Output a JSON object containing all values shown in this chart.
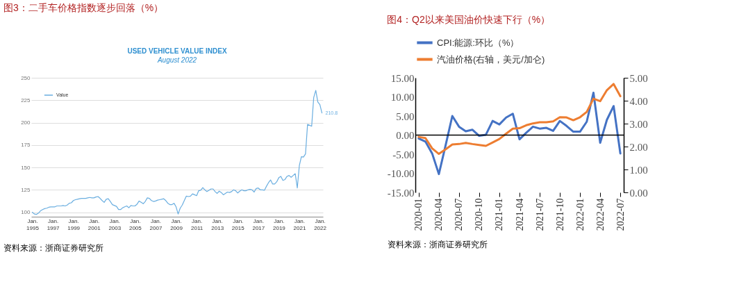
{
  "chart_data": [
    {
      "type": "line",
      "title": "图3：二手车价格指数逐步回落（%）",
      "subtitle": "USED VEHICLE VALUE INDEX",
      "annotations": [
        "August 2022",
        "资料来源：浙商证券研究所"
      ],
      "categories": [
        "Jan. 1995",
        null,
        null,
        null,
        null,
        null,
        null,
        null,
        null,
        null,
        "Jan. 1997",
        null,
        null,
        null,
        null,
        null,
        null,
        null,
        null,
        null,
        "Jan. 1999",
        null,
        null,
        null,
        null,
        null,
        null,
        null,
        null,
        null,
        "Jan. 2001",
        null,
        null,
        null,
        null,
        null,
        null,
        null,
        null,
        null,
        "Jan. 2003",
        null,
        null,
        null,
        null,
        null,
        null,
        null,
        null,
        null,
        "Jan. 2005",
        null,
        null,
        null,
        null,
        null,
        null,
        null,
        null,
        null,
        "Jan. 2007",
        null,
        null,
        null,
        null,
        null,
        null,
        null,
        null,
        null,
        "Jan. 2009",
        null,
        null,
        null,
        null,
        null,
        null,
        null,
        null,
        null,
        "Jan. 2011",
        null,
        null,
        null,
        null,
        null,
        null,
        null,
        null,
        null,
        "Jan. 2013",
        null,
        null,
        null,
        null,
        null,
        null,
        null,
        null,
        null,
        "Jan. 2015",
        null,
        null,
        null,
        null,
        null,
        null,
        null,
        null,
        null,
        "Jan. 2017",
        null,
        null,
        null,
        null,
        null,
        null,
        null,
        null,
        null,
        "Jan. 2019",
        null,
        null,
        null,
        null,
        null,
        null,
        null,
        null,
        null,
        "Jan. 2021",
        null,
        null,
        null,
        null,
        null,
        null,
        null,
        null,
        null,
        "Jan. 2022",
        null
      ],
      "series": [
        {
          "name": "Value",
          "color": "#6aaee0",
          "values": [
            100,
            98,
            97.5,
            99,
            101.5,
            103,
            104,
            104.5,
            105.5,
            106,
            106,
            106,
            107,
            107,
            107,
            107.5,
            107,
            108,
            110,
            110.5,
            113,
            114,
            114.5,
            115,
            115.5,
            115.5,
            115.5,
            116,
            116.5,
            116,
            116,
            117,
            117.5,
            115.5,
            113,
            111,
            114.5,
            115,
            112,
            108.5,
            107.5,
            106.5,
            103,
            103,
            105,
            106,
            107,
            105,
            107.5,
            107,
            107,
            109,
            112.5,
            111,
            109.5,
            112,
            116,
            115.5,
            113,
            112,
            112.5,
            113.5,
            114,
            114.5,
            115,
            113,
            110,
            108.5,
            108.5,
            110,
            106,
            98,
            104.5,
            108,
            113,
            118,
            117.5,
            118,
            120.5,
            119.5,
            118.5,
            124,
            124.5,
            127.5,
            125,
            123,
            124.5,
            126,
            126,
            123,
            121,
            123.5,
            122,
            119.5,
            121,
            122.5,
            122,
            123,
            125,
            124,
            121.5,
            123.5,
            125,
            124,
            124,
            125,
            125.5,
            125,
            122.5,
            126.5,
            127,
            125,
            125,
            124.5,
            129,
            133,
            136,
            131.5,
            131.5,
            134,
            138.5,
            140,
            135.5,
            136.5,
            140,
            141,
            139,
            141,
            143,
            127,
            152,
            162,
            161.5,
            165,
            198,
            197,
            196,
            228,
            236,
            223,
            220,
            210.8
          ],
          "value_labels": [
            null,
            null,
            null,
            null,
            null,
            null,
            null,
            null,
            null,
            null,
            null,
            null,
            null,
            null,
            null,
            null,
            null,
            null,
            null,
            null,
            null,
            null,
            null,
            null,
            null,
            null,
            null,
            null,
            null,
            null,
            null,
            null,
            null,
            null,
            null,
            null,
            null,
            null,
            null,
            null,
            null,
            null,
            null,
            null,
            null,
            null,
            null,
            null,
            null,
            null,
            null,
            null,
            null,
            null,
            null,
            null,
            null,
            null,
            null,
            null,
            null,
            null,
            null,
            null,
            null,
            null,
            null,
            null,
            null,
            null,
            null,
            null,
            null,
            null,
            null,
            null,
            null,
            null,
            null,
            null,
            null,
            null,
            null,
            null,
            null,
            null,
            null,
            null,
            null,
            null,
            null,
            null,
            null,
            null,
            null,
            null,
            null,
            null,
            null,
            null,
            null,
            null,
            null,
            null,
            null,
            null,
            null,
            null,
            null,
            null,
            null,
            null,
            null,
            null,
            null,
            null,
            null,
            null,
            null,
            null,
            null,
            null,
            null,
            null,
            null,
            null,
            null,
            null,
            null,
            null,
            null,
            null,
            null,
            null,
            null,
            null,
            null,
            null,
            null,
            null,
            null,
            "210.8"
          ]
        }
      ],
      "ylim": [
        95,
        250
      ],
      "yticks": [
        100,
        125,
        150,
        175,
        200,
        225,
        250
      ],
      "grid": "y",
      "legend": "top left"
    },
    {
      "type": "line",
      "title": "图4：Q2以来美国油价快速下行（%）",
      "annotations": [
        "资料来源：浙商证券研究所"
      ],
      "categories": [
        "2020-01",
        null,
        null,
        "2020-04",
        null,
        null,
        "2020-07",
        null,
        null,
        "2020-10",
        null,
        null,
        "2021-01",
        null,
        null,
        "2021-04",
        null,
        null,
        "2021-07",
        null,
        null,
        "2021-10",
        null,
        null,
        "2022-01",
        null,
        null,
        "2022-04",
        null,
        null,
        "2022-07"
      ],
      "series": [
        {
          "name": "CPI:能源:环比（%）",
          "color": "#4472c4",
          "values": [
            -0.9,
            -1.7,
            -4.8,
            -10.2,
            -2.7,
            5.0,
            2.2,
            1.0,
            1.4,
            -0.2,
            0.1,
            3.7,
            2.8,
            4.6,
            5.6,
            -1.1,
            0.6,
            2.2,
            1.7,
            1.9,
            1.1,
            3.7,
            2.4,
            0.9,
            0.9,
            3.5,
            11.1,
            -2.0,
            4.0,
            7.6,
            -4.8
          ]
        },
        {
          "name": "汽油价格(右轴，美元/加仑)",
          "color": "#ed7d31",
          "axis": "y2",
          "values": [
            2.42,
            2.37,
            1.92,
            1.68,
            1.88,
            2.09,
            2.11,
            2.16,
            2.11,
            2.07,
            2.03,
            2.18,
            2.33,
            2.56,
            2.78,
            2.8,
            2.93,
            3.01,
            3.06,
            3.06,
            3.1,
            3.28,
            3.27,
            3.15,
            3.28,
            3.51,
            4.09,
            3.98,
            4.46,
            4.73,
            4.2
          ]
        }
      ],
      "ylim": [
        -15,
        15
      ],
      "yticks": [
        {
          "value": 15,
          "label": "15.00"
        },
        {
          "value": 10,
          "label": "10.00"
        },
        {
          "value": 5,
          "label": "5.00"
        },
        {
          "value": 0,
          "label": "0.00"
        },
        {
          "value": -5,
          "label": "-5.00"
        },
        {
          "value": -10,
          "label": "-10.00"
        },
        {
          "value": -15,
          "label": "-15.00"
        }
      ],
      "y2lim": [
        0,
        5
      ],
      "y2ticks": [
        {
          "value": 0,
          "label": "0.00"
        },
        {
          "value": 1,
          "label": "1.00"
        },
        {
          "value": 2,
          "label": "2.00"
        },
        {
          "value": 3,
          "label": "3.00"
        },
        {
          "value": 4,
          "label": "4.00"
        },
        {
          "value": 5,
          "label": "5.00"
        }
      ],
      "ref_lines": [
        {
          "axis": "y",
          "value": 0,
          "color": "#000000"
        }
      ],
      "legend": "top",
      "grid": false
    }
  ]
}
